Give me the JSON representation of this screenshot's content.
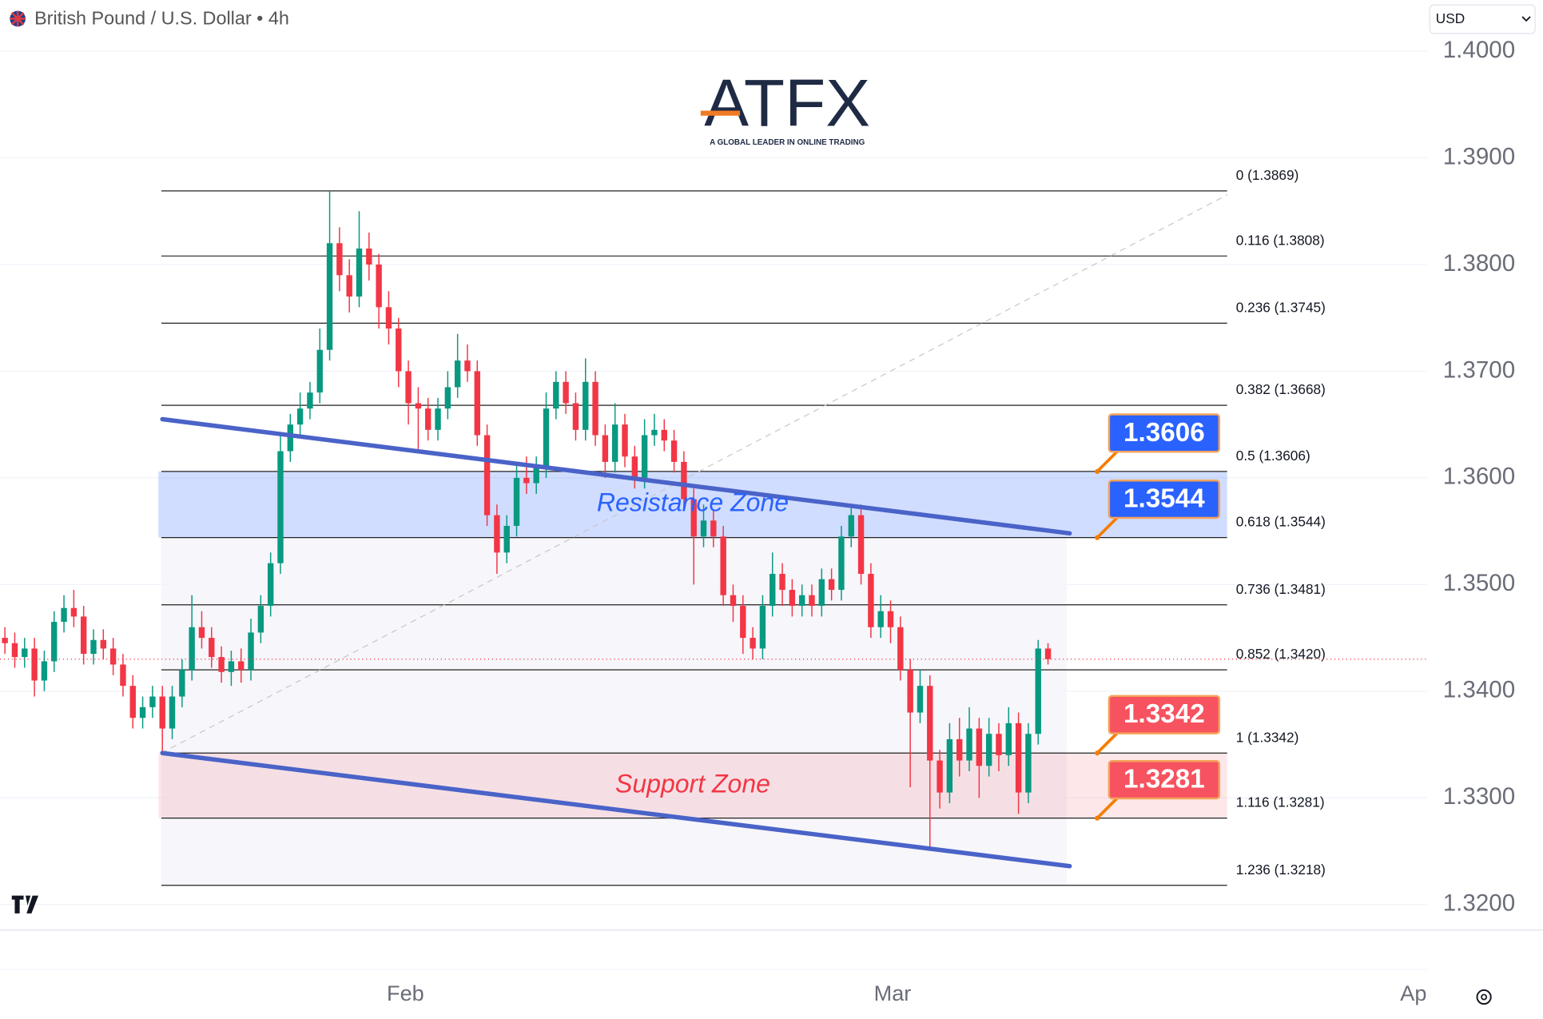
{
  "header": {
    "symbol": "British Pound / U.S. Dollar",
    "interval": "4h",
    "currency": "USD"
  },
  "logo": {
    "name": "ATFX",
    "tagline": "A GLOBAL LEADER IN ONLINE TRADING"
  },
  "chart_data": {
    "type": "candlestick",
    "up_color": "#089981",
    "down_color": "#f23645",
    "xlim": [
      -0.5,
      144.5
    ],
    "xticks": [
      {
        "value": 40.7,
        "label": "Feb"
      },
      {
        "value": 90.2,
        "label": "Mar"
      },
      {
        "value": 143.5,
        "label": "Apr"
      }
    ],
    "ylim": [
      1.3176,
      1.4048
    ],
    "yticks": [
      {
        "value": 1.32,
        "label": "1.3200"
      },
      {
        "value": 1.33,
        "label": "1.3300"
      },
      {
        "value": 1.34,
        "label": "1.3400"
      },
      {
        "value": 1.35,
        "label": "1.3500"
      },
      {
        "value": 1.36,
        "label": "1.3600"
      },
      {
        "value": 1.37,
        "label": "1.3700"
      },
      {
        "value": 1.38,
        "label": "1.3800"
      },
      {
        "value": 1.39,
        "label": "1.3900"
      },
      {
        "value": 1.4,
        "label": "1.4000"
      }
    ],
    "grid": true,
    "open": [
      1.345,
      1.3445,
      1.3432,
      1.344,
      1.341,
      1.3428,
      1.3465,
      1.3478,
      1.347,
      1.3435,
      1.3448,
      1.344,
      1.3425,
      1.3405,
      1.3375,
      1.3385,
      1.3395,
      1.3365,
      1.3395,
      1.342,
      1.346,
      1.345,
      1.3432,
      1.3418,
      1.3428,
      1.342,
      1.3455,
      1.348,
      1.352,
      1.3625,
      1.365,
      1.3665,
      1.368,
      1.372,
      1.382,
      1.379,
      1.377,
      1.3815,
      1.38,
      1.376,
      1.374,
      1.37,
      1.367,
      1.3665,
      1.3645,
      1.3665,
      1.3685,
      1.371,
      1.37,
      1.364,
      1.3565,
      1.353,
      1.3555,
      1.36,
      1.3595,
      1.361,
      1.3665,
      1.369,
      1.367,
      1.3645,
      1.369,
      1.364,
      1.3615,
      1.365,
      1.362,
      1.36,
      1.364,
      1.3645,
      1.3635,
      1.3615,
      1.358,
      1.3545,
      1.356,
      1.3545,
      1.349,
      1.348,
      1.345,
      1.344,
      1.348,
      1.351,
      1.3495,
      1.348,
      1.349,
      1.348,
      1.3505,
      1.3495,
      1.3545,
      1.3565,
      1.351,
      1.346,
      1.3475,
      1.346,
      1.342,
      1.338,
      1.3405,
      1.3335,
      1.3305,
      1.3355,
      1.3335,
      1.3365,
      1.333,
      1.336,
      1.334,
      1.337,
      1.3305,
      1.336,
      1.344
    ],
    "high": [
      1.346,
      1.3455,
      1.345,
      1.345,
      1.3438,
      1.3475,
      1.349,
      1.3495,
      1.348,
      1.3458,
      1.3458,
      1.345,
      1.3435,
      1.3415,
      1.3395,
      1.3405,
      1.3405,
      1.3405,
      1.343,
      1.349,
      1.3475,
      1.346,
      1.3442,
      1.3438,
      1.344,
      1.3468,
      1.349,
      1.353,
      1.364,
      1.366,
      1.368,
      1.369,
      1.374,
      1.3869,
      1.3835,
      1.3805,
      1.385,
      1.383,
      1.381,
      1.3775,
      1.375,
      1.371,
      1.3685,
      1.3675,
      1.3675,
      1.37,
      1.3735,
      1.3725,
      1.371,
      1.365,
      1.3575,
      1.3565,
      1.3615,
      1.362,
      1.362,
      1.368,
      1.37,
      1.37,
      1.368,
      1.3712,
      1.37,
      1.365,
      1.367,
      1.366,
      1.363,
      1.3655,
      1.366,
      1.3655,
      1.3645,
      1.3625,
      1.359,
      1.3575,
      1.357,
      1.3555,
      1.35,
      1.349,
      1.346,
      1.349,
      1.353,
      1.352,
      1.3505,
      1.35,
      1.35,
      1.3515,
      1.3515,
      1.3555,
      1.3575,
      1.3575,
      1.352,
      1.349,
      1.3485,
      1.347,
      1.343,
      1.342,
      1.3415,
      1.3345,
      1.337,
      1.3375,
      1.3385,
      1.3375,
      1.3375,
      1.337,
      1.3385,
      1.338,
      1.337,
      1.3448,
      1.3445
    ],
    "low": [
      1.3435,
      1.3422,
      1.3422,
      1.3395,
      1.34,
      1.3418,
      1.3455,
      1.346,
      1.3425,
      1.3425,
      1.343,
      1.3415,
      1.3395,
      1.3365,
      1.3365,
      1.3375,
      1.3342,
      1.3355,
      1.3385,
      1.341,
      1.344,
      1.3422,
      1.3408,
      1.3405,
      1.3408,
      1.341,
      1.3445,
      1.347,
      1.351,
      1.3615,
      1.364,
      1.3655,
      1.367,
      1.371,
      1.3775,
      1.3755,
      1.376,
      1.3785,
      1.374,
      1.3725,
      1.3685,
      1.365,
      1.3625,
      1.3635,
      1.3635,
      1.3655,
      1.3675,
      1.369,
      1.363,
      1.3555,
      1.351,
      1.352,
      1.3545,
      1.3585,
      1.3585,
      1.36,
      1.3655,
      1.366,
      1.3635,
      1.3635,
      1.363,
      1.36,
      1.3605,
      1.361,
      1.359,
      1.359,
      1.363,
      1.3625,
      1.3605,
      1.357,
      1.35,
      1.3535,
      1.3535,
      1.348,
      1.3465,
      1.3435,
      1.343,
      1.343,
      1.347,
      1.348,
      1.347,
      1.347,
      1.347,
      1.347,
      1.3485,
      1.3485,
      1.3535,
      1.35,
      1.345,
      1.345,
      1.3445,
      1.341,
      1.331,
      1.337,
      1.3252,
      1.329,
      1.3295,
      1.332,
      1.3325,
      1.33,
      1.332,
      1.3325,
      1.333,
      1.3285,
      1.3295,
      1.335,
      1.3425
    ],
    "close": [
      1.3445,
      1.3432,
      1.344,
      1.341,
      1.3428,
      1.3465,
      1.3478,
      1.347,
      1.3435,
      1.3448,
      1.344,
      1.3425,
      1.3405,
      1.3375,
      1.3385,
      1.3395,
      1.3365,
      1.3395,
      1.342,
      1.346,
      1.345,
      1.3432,
      1.3418,
      1.3428,
      1.342,
      1.3455,
      1.348,
      1.352,
      1.3625,
      1.365,
      1.3665,
      1.368,
      1.372,
      1.382,
      1.379,
      1.377,
      1.3815,
      1.38,
      1.376,
      1.374,
      1.37,
      1.367,
      1.3665,
      1.3645,
      1.3665,
      1.3685,
      1.371,
      1.37,
      1.364,
      1.3565,
      1.353,
      1.3555,
      1.36,
      1.3595,
      1.361,
      1.3665,
      1.369,
      1.367,
      1.3645,
      1.369,
      1.364,
      1.3615,
      1.365,
      1.362,
      1.36,
      1.364,
      1.3645,
      1.3635,
      1.3615,
      1.358,
      1.3545,
      1.356,
      1.3545,
      1.349,
      1.348,
      1.345,
      1.344,
      1.348,
      1.351,
      1.3495,
      1.348,
      1.349,
      1.348,
      1.3505,
      1.3495,
      1.3545,
      1.3565,
      1.351,
      1.346,
      1.3475,
      1.346,
      1.342,
      1.338,
      1.3405,
      1.3335,
      1.3305,
      1.3355,
      1.3335,
      1.3365,
      1.333,
      1.336,
      1.334,
      1.337,
      1.3305,
      1.336,
      1.344,
      1.343
    ],
    "fib_levels": [
      {
        "value": 1.3869,
        "label": "0 (1.3869)"
      },
      {
        "value": 1.3808,
        "label": "0.116 (1.3808)"
      },
      {
        "value": 1.3745,
        "label": "0.236 (1.3745)"
      },
      {
        "value": 1.3668,
        "label": "0.382 (1.3668)"
      },
      {
        "value": 1.3606,
        "label": "0.5 (1.3606)"
      },
      {
        "value": 1.3544,
        "label": "0.618 (1.3544)"
      },
      {
        "value": 1.3481,
        "label": "0.736 (1.3481)"
      },
      {
        "value": 1.342,
        "label": "0.852 (1.3420)"
      },
      {
        "value": 1.3342,
        "label": "1 (1.3342)"
      },
      {
        "value": 1.3281,
        "label": "1.116 (1.3281)"
      },
      {
        "value": 1.3218,
        "label": "1.236 (1.3218)"
      }
    ],
    "zones": [
      {
        "name": "Resistance Zone",
        "from": 1.3544,
        "to": 1.3606,
        "color": "#2962ff"
      },
      {
        "name": "Support Zone",
        "from": 1.3281,
        "to": 1.3342,
        "color": "#f23645"
      }
    ],
    "price_labels": [
      {
        "value": 1.3606,
        "color": "#2962ff"
      },
      {
        "value": 1.3544,
        "color": "#2962ff"
      },
      {
        "value": 1.3342,
        "color": "#f7525f"
      },
      {
        "value": 1.3281,
        "color": "#f7525f"
      }
    ],
    "trendlines": [
      {
        "x": [
          16,
          108.2
        ],
        "y": [
          1.3655,
          1.3548
        ],
        "color": "#4a63c8"
      },
      {
        "x": [
          16,
          108.2
        ],
        "y": [
          1.3342,
          1.3236
        ],
        "color": "#4a63c8"
      }
    ]
  }
}
